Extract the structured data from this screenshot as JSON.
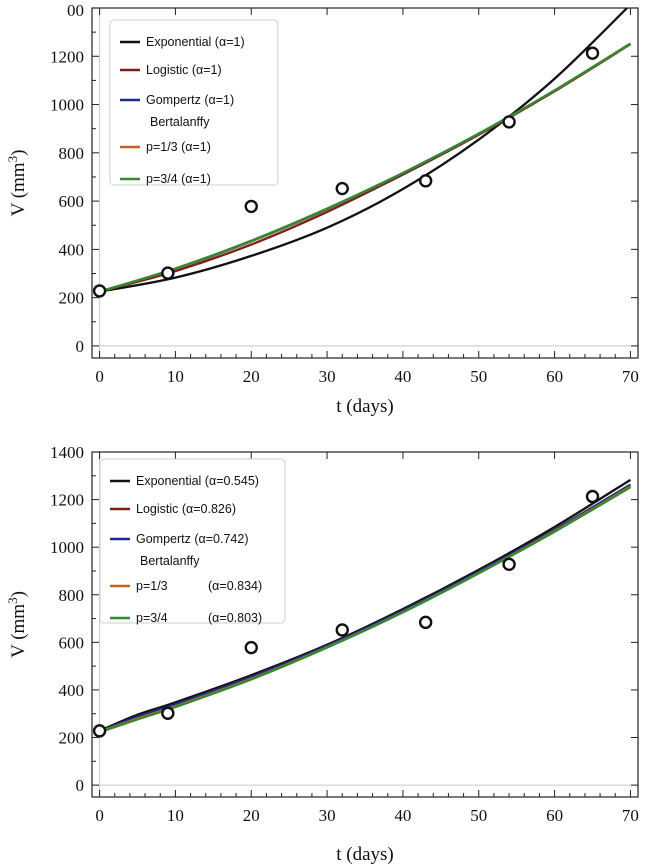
{
  "chart_data": [
    {
      "type": "line",
      "xlabel": "t (days)",
      "ylabel": "V (mm",
      "ylabel_sup": "3",
      "ylabel_close": ")",
      "xlim": [
        -1,
        71
      ],
      "ylim": [
        -50,
        1400
      ],
      "xticks": [
        0,
        10,
        20,
        30,
        40,
        50,
        60,
        70
      ],
      "yticks": [
        0,
        200,
        400,
        600,
        800,
        1000,
        1200
      ],
      "ytick_labels": [
        "0",
        "200",
        "400",
        "600",
        "800",
        "1000",
        "1200"
      ],
      "top_clip_label": "00",
      "observed": {
        "x": [
          0,
          9,
          20,
          32,
          43,
          54,
          65
        ],
        "y": [
          228,
          302,
          578,
          652,
          684,
          928,
          1213
        ]
      },
      "series": [
        {
          "name": "Exponential",
          "alpha": "(α=1)",
          "color": "#111111",
          "x": [
            0,
            10,
            20,
            30,
            40,
            50,
            60,
            70
          ],
          "y": [
            225,
            283,
            373,
            490,
            650,
            855,
            1107,
            1414
          ]
        },
        {
          "name": "Logistic",
          "alpha": "(α=1)",
          "color": "#7b1e1e",
          "x": [
            0,
            10,
            20,
            30,
            40,
            50,
            60,
            70
          ],
          "y": [
            225,
            310,
            420,
            555,
            710,
            875,
            1055,
            1250
          ]
        },
        {
          "name": "Gompertz",
          "alpha": "(α=1)",
          "color": "#1f2a8a",
          "x": [
            0,
            10,
            20,
            30,
            40,
            50,
            60,
            70
          ],
          "y": [
            225,
            318,
            433,
            566,
            715,
            878,
            1058,
            1252
          ]
        },
        {
          "name": "p=1/3",
          "alpha": "(α=1)",
          "color": "#c0641f",
          "x": [
            0,
            10,
            20,
            30,
            40,
            50,
            60,
            70
          ],
          "y": [
            225,
            319,
            434,
            567,
            716,
            879,
            1058,
            1252
          ]
        },
        {
          "name": "p=3/4",
          "alpha": "(α=1)",
          "color": "#2e8b2e",
          "x": [
            0,
            10,
            20,
            30,
            40,
            50,
            60,
            70
          ],
          "y": [
            225,
            321,
            436,
            569,
            717,
            880,
            1059,
            1253
          ]
        }
      ],
      "legend_group_label": "Bertalanffy",
      "legend_group_starts_at": 3
    },
    {
      "type": "line",
      "xlabel": "t (days)",
      "ylabel": "V (mm",
      "ylabel_sup": "3",
      "ylabel_close": ")",
      "xlim": [
        -1,
        71
      ],
      "ylim": [
        -50,
        1400
      ],
      "xticks": [
        0,
        10,
        20,
        30,
        40,
        50,
        60,
        70
      ],
      "yticks": [
        0,
        200,
        400,
        600,
        800,
        1000,
        1200,
        1400
      ],
      "ytick_labels": [
        "0",
        "200",
        "400",
        "600",
        "800",
        "1000",
        "1200",
        "1400"
      ],
      "observed": {
        "x": [
          0,
          9,
          20,
          32,
          43,
          54,
          65
        ],
        "y": [
          228,
          302,
          578,
          652,
          684,
          928,
          1213
        ]
      },
      "series": [
        {
          "name": "Exponential",
          "alpha": "(α=0.545)",
          "color": "#111111",
          "x": [
            0,
            5,
            10,
            20,
            30,
            40,
            50,
            60,
            70
          ],
          "y": [
            228,
            296,
            348,
            462,
            590,
            740,
            905,
            1085,
            1283
          ]
        },
        {
          "name": "Logistic",
          "alpha": "(α=0.826)",
          "color": "#7b1e1e",
          "x": [
            0,
            5,
            10,
            20,
            30,
            40,
            50,
            60,
            70
          ],
          "y": [
            224,
            283,
            335,
            450,
            582,
            730,
            895,
            1072,
            1262
          ]
        },
        {
          "name": "Gompertz",
          "alpha": "(α=0.742)",
          "color": "#1f2a8a",
          "x": [
            0,
            5,
            10,
            20,
            30,
            40,
            50,
            60,
            70
          ],
          "y": [
            226,
            288,
            340,
            455,
            586,
            734,
            898,
            1074,
            1263
          ]
        },
        {
          "name": "p=1/3",
          "alpha": "(α=0.834)",
          "color": "#c0641f",
          "x": [
            0,
            5,
            10,
            20,
            30,
            40,
            50,
            60,
            70
          ],
          "y": [
            224,
            280,
            332,
            447,
            580,
            728,
            892,
            1068,
            1256
          ]
        },
        {
          "name": "p=3/4",
          "alpha": "(α=0.803)",
          "color": "#2e8b2e",
          "x": [
            0,
            5,
            10,
            20,
            30,
            40,
            50,
            60,
            70
          ],
          "y": [
            222,
            276,
            328,
            444,
            578,
            726,
            890,
            1065,
            1252
          ]
        }
      ],
      "legend_group_label": "Bertalanffy",
      "legend_group_starts_at": 3
    }
  ]
}
